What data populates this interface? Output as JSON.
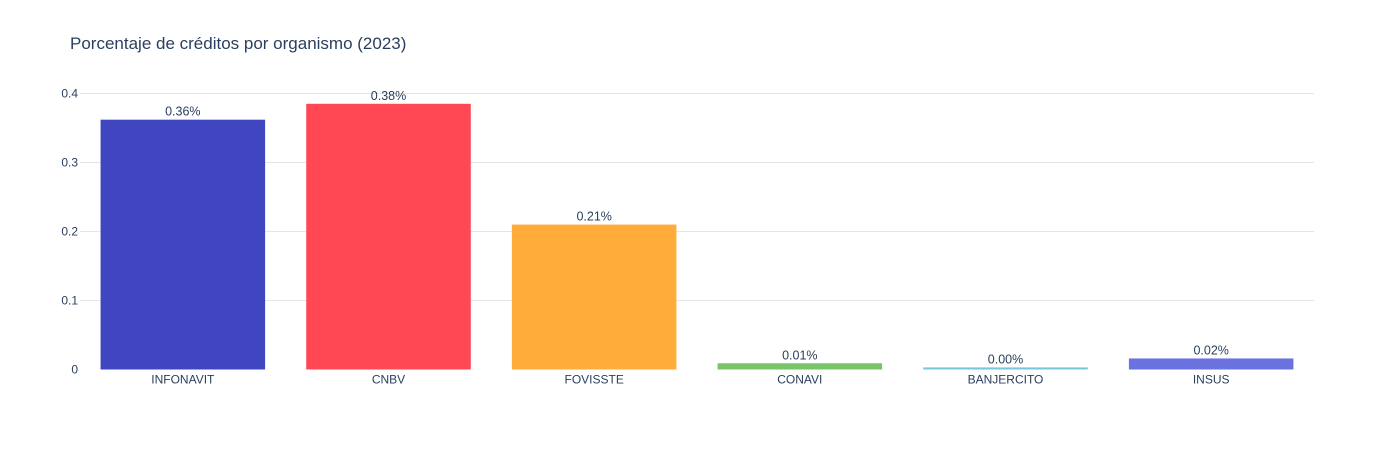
{
  "chart_data": {
    "type": "bar",
    "title": "Porcentaje de créditos por organismo (2023)",
    "xlabel": "",
    "ylabel": "",
    "categories": [
      "INFONAVIT",
      "CNBV",
      "FOVISSTE",
      "CONAVI",
      "BANJERCITO",
      "INSUS"
    ],
    "values": [
      0.362,
      0.385,
      0.21,
      0.009,
      0.003,
      0.016
    ],
    "data_labels": [
      "0.36%",
      "0.38%",
      "0.21%",
      "0.01%",
      "0.00%",
      "0.02%"
    ],
    "colors": [
      "#4046c0",
      "#ff4854",
      "#ffac3b",
      "#77c566",
      "#78c6dc",
      "#6a72e0"
    ],
    "yticks": [
      0,
      0.1,
      0.2,
      0.3,
      0.4
    ],
    "ytick_labels": [
      "0",
      "0.1",
      "0.2",
      "0.3",
      "0.4"
    ],
    "ylim": [
      0,
      0.405
    ],
    "grid": true,
    "legend": "none"
  },
  "theme": {
    "text_color": "#2a3f5f",
    "grid_color": "#e5e5e5",
    "background": "#ffffff"
  }
}
